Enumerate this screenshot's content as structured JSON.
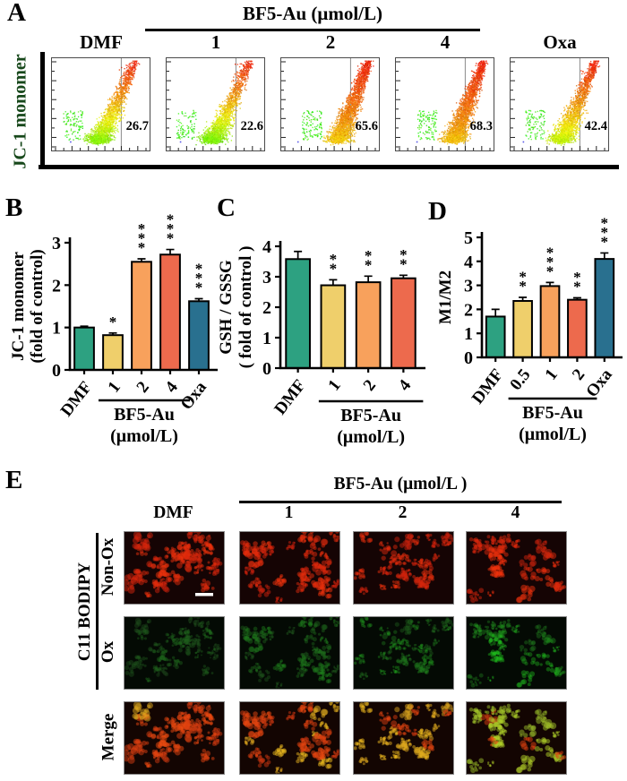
{
  "figure": {
    "panels": {
      "A": {
        "label": "A",
        "group_header": "BF5-Au (μmol/L)",
        "y_axis_label": "JC-1 monomer",
        "y_axis_label_color": "#17481b",
        "plots": [
          {
            "title": "DMF",
            "percent": "26.7"
          },
          {
            "title": "1",
            "percent": "22.6"
          },
          {
            "title": "2",
            "percent": "65.6"
          },
          {
            "title": "4",
            "percent": "68.3"
          },
          {
            "title": "Oxa",
            "percent": "42.4"
          }
        ]
      },
      "B": {
        "label": "B"
      },
      "C": {
        "label": "C"
      },
      "D": {
        "label": "D"
      },
      "E": {
        "label": "E",
        "group_header": "BF5-Au (μmol/L )",
        "column_labels": [
          "DMF",
          "1",
          "2",
          "4"
        ],
        "row_labels": [
          "Non-Ox",
          "Ox",
          "Merge"
        ],
        "side_label": "C11 BODIPY"
      }
    }
  },
  "chart_data": [
    {
      "panel": "B",
      "type": "bar",
      "categories": [
        "DMF",
        "1",
        "2",
        "4",
        "Oxa"
      ],
      "values": [
        1.0,
        0.82,
        2.55,
        2.72,
        1.62
      ],
      "errors": [
        0.03,
        0.05,
        0.07,
        0.12,
        0.06
      ],
      "significance": [
        "",
        "*",
        "***",
        "***",
        "***"
      ],
      "bar_colors": [
        "#2DA181",
        "#EFCF6B",
        "#F8A15C",
        "#ED6A4D",
        "#29708F"
      ],
      "ylabel_lines": [
        "JC-1 monomer",
        "(fold of control)"
      ],
      "ylim": [
        0,
        3
      ],
      "yticks": [
        0,
        1,
        2,
        3
      ],
      "group_label_lines": [
        "BF5-Au",
        "(μmol/L)"
      ],
      "group_span": [
        1,
        3
      ]
    },
    {
      "panel": "C",
      "type": "bar",
      "categories": [
        "DMF",
        "1",
        "2",
        "4"
      ],
      "values": [
        3.58,
        2.72,
        2.82,
        2.95
      ],
      "errors": [
        0.25,
        0.18,
        0.2,
        0.1
      ],
      "significance": [
        "",
        "**",
        "**",
        "**"
      ],
      "bar_colors": [
        "#2DA181",
        "#EFCF6B",
        "#F8A15C",
        "#ED6A4D"
      ],
      "ylabel_lines": [
        "GSH / GSSG",
        "( fold of control )"
      ],
      "ylim": [
        0,
        4
      ],
      "yticks": [
        0,
        1,
        2,
        3,
        4
      ],
      "group_label_lines": [
        "BF5-Au",
        "(μmol/L)"
      ],
      "group_span": [
        1,
        3
      ]
    },
    {
      "panel": "D",
      "type": "bar",
      "categories": [
        "DMF",
        "0.5",
        "1",
        "2",
        "Oxa"
      ],
      "values": [
        1.7,
        2.35,
        2.97,
        2.4,
        4.1
      ],
      "errors": [
        0.3,
        0.15,
        0.15,
        0.08,
        0.25
      ],
      "significance": [
        "",
        "**",
        "***",
        "**",
        "***"
      ],
      "bar_colors": [
        "#2DA181",
        "#EFCF6B",
        "#F8A15C",
        "#ED6A4D",
        "#29708F"
      ],
      "ylabel_lines": [
        "M1/M2"
      ],
      "ylim": [
        0,
        5
      ],
      "yticks": [
        0,
        1,
        2,
        3,
        4,
        5
      ],
      "group_label_lines": [
        "BF5-Au",
        "(μmol/L)"
      ],
      "group_span": [
        1,
        3
      ]
    }
  ]
}
